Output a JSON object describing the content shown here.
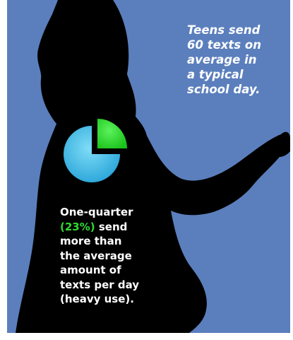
{
  "headline": {
    "lines": [
      "Teens send",
      "60 texts on",
      "average in",
      "a typical",
      "school day."
    ]
  },
  "pie": {
    "share_percent": 23,
    "highlight_color": "#22e322",
    "base_color": "#4fc7ee"
  },
  "stat": {
    "line1": "One-quarter",
    "pct": "(23%)",
    "line2_rest": " send",
    "line3": "more than",
    "line4": "the average",
    "line5": "amount of",
    "line6": "texts per day",
    "line7": "(heavy use)."
  },
  "colors": {
    "background": "#5b7fbd",
    "silhouette": "#000000",
    "text": "#ffffff",
    "accent": "#2edc2e"
  }
}
